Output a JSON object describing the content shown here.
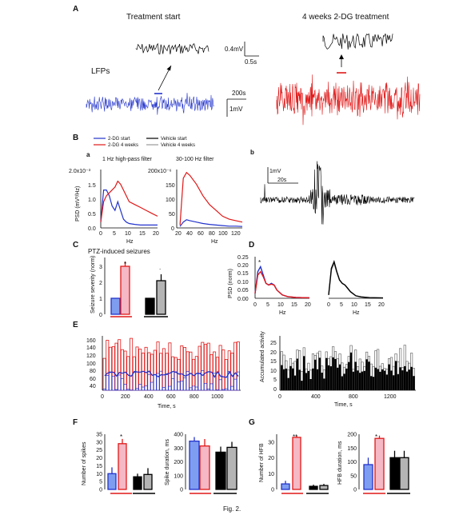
{
  "panels": {
    "A": "A",
    "B": "B",
    "C": "C",
    "D": "D",
    "E": "E",
    "F": "F",
    "G": "G",
    "Ba": "a",
    "Bb": "b"
  },
  "panelA": {
    "treatment_start": "Treatment start",
    "weeks_treatment": "4 weeks 2-DG treatment",
    "lfps": "LFPs",
    "scale_mv_small": "0.4mV",
    "scale_s_small": "0.5s",
    "scale_s_big": "200s",
    "scale_mv_big": "1mV"
  },
  "legend": {
    "dg_start": "2-DG start",
    "dg_4w": "2-DG 4 weeks",
    "veh_start": "Vehicle start",
    "veh_4w": "Vehicle 4 weeks"
  },
  "panelBa": {
    "title1": "1 Hz high-pass filter",
    "title2": "30-100 Hz filter",
    "ylab": "PSD (mV²/Hz)",
    "xlab": "Hz",
    "y1top": "2.0x10⁻³",
    "y1ticks": [
      "1.5",
      "1.0",
      "0.5",
      "0.0"
    ],
    "x1ticks": [
      "0",
      "5",
      "10",
      "15",
      "20"
    ],
    "y2top": "200x10⁻⁶",
    "y2ticks": [
      "150",
      "100",
      "50",
      "0"
    ],
    "x2ticks": [
      "20",
      "40",
      "60",
      "80",
      "100",
      "120"
    ]
  },
  "panelBb": {
    "scale_mv": "1mV",
    "scale_s": "20s"
  },
  "panelC": {
    "title": "PTZ-induced seizures",
    "ylab": "Seizure severity (norm)",
    "yticks": [
      "0",
      "1",
      "2",
      "3"
    ],
    "star": "*",
    "dot": "."
  },
  "panelD": {
    "ylab": "PSD (norm)",
    "yticks": [
      "0.00",
      "0.05",
      "0.10",
      "0.15",
      "0.20",
      "0.25"
    ],
    "xticks": [
      "0",
      "5",
      "10",
      "15",
      "20"
    ],
    "xlab": "Hz",
    "star": "*"
  },
  "panelE": {
    "xlab": "Time, s",
    "yticks_left": [
      "40",
      "60",
      "80",
      "100",
      "120",
      "140",
      "160"
    ],
    "xticks_left": [
      "0",
      "200",
      "400",
      "600",
      "800",
      "1000"
    ],
    "ylab_right": "Accumulated activity",
    "yticks_right": [
      "0",
      "5",
      "10",
      "15",
      "20",
      "25"
    ],
    "xticks_right": [
      "0",
      "400",
      "800",
      "1200"
    ]
  },
  "panelF": {
    "ylab1": "Number of spikes",
    "yticks1": [
      "0",
      "5",
      "10",
      "15",
      "20",
      "25",
      "30",
      "35"
    ],
    "ylab2": "Spike duration, ms",
    "yticks2": [
      "0",
      "100",
      "200",
      "300",
      "400"
    ],
    "star": "*"
  },
  "panelG": {
    "ylab1": "Number of HFB",
    "yticks1": [
      "0",
      "10",
      "20",
      "30"
    ],
    "ylab2": "HFB duration, ms",
    "yticks2": [
      "0",
      "50",
      "100",
      "150",
      "200"
    ],
    "star1": "**",
    "star2": "*"
  },
  "caption": "Fig. 2.",
  "colors": {
    "blue": "#2233cc",
    "red": "#e01818",
    "light_blue": "#7f9df0",
    "pink": "#f5b8c4",
    "gray": "#b4b4b4",
    "black": "#000000"
  },
  "chart_data": [
    {
      "type": "line",
      "panel": "Ba-left",
      "title": "1 Hz high-pass filter",
      "xlabel": "Hz",
      "ylabel": "PSD (mV²/Hz)",
      "xlim": [
        0,
        20
      ],
      "ylim": [
        0,
        0.002
      ],
      "x": [
        0,
        1,
        2,
        3,
        4,
        5,
        6,
        7,
        8,
        9,
        10,
        12,
        14,
        16,
        18,
        20
      ],
      "series": [
        {
          "name": "2-DG start",
          "values": [
            0.0002,
            0.0013,
            0.0013,
            0.0011,
            0.00075,
            0.0006,
            0.0009,
            0.0006,
            0.0003,
            0.0002,
            0.00015,
            0.00012,
            0.0001,
            0.0001,
            0.0001,
            0.0001
          ]
        },
        {
          "name": "2-DG 4 weeks",
          "values": [
            0.0002,
            0.0009,
            0.0011,
            0.0012,
            0.0013,
            0.0014,
            0.0016,
            0.0015,
            0.0013,
            0.0011,
            0.0009,
            0.0008,
            0.0007,
            0.0006,
            0.0005,
            0.0004
          ]
        }
      ]
    },
    {
      "type": "line",
      "panel": "Ba-right",
      "title": "30-100 Hz filter",
      "xlabel": "Hz",
      "xlim": [
        20,
        120
      ],
      "ylim": [
        0,
        0.0002
      ],
      "x": [
        25,
        30,
        35,
        40,
        50,
        60,
        70,
        80,
        90,
        100,
        110,
        120
      ],
      "series": [
        {
          "name": "2-DG start",
          "values": [
            5e-06,
            2e-05,
            2.8e-05,
            2.5e-05,
            2e-05,
            1.5e-05,
            1.2e-05,
            1e-05,
            8e-06,
            6e-06,
            6e-06,
            5e-06
          ]
        },
        {
          "name": "2-DG 4 weeks",
          "values": [
            1e-05,
            0.00017,
            0.00019,
            0.00018,
            0.00015,
            0.00011,
            8e-05,
            6e-05,
            4e-05,
            3e-05,
            2.5e-05,
            2e-05
          ]
        }
      ]
    },
    {
      "type": "bar",
      "panel": "C",
      "title": "PTZ-induced seizures",
      "ylabel": "Seizure severity (norm)",
      "ylim": [
        0,
        3.5
      ],
      "values": [
        1.0,
        3.0,
        1.0,
        2.1
      ],
      "errors": [
        0,
        0.3,
        0,
        0.4
      ]
    },
    {
      "type": "line",
      "panel": "D",
      "ylabel": "PSD (norm)",
      "xlabel": "Hz",
      "xlim": [
        0,
        20
      ],
      "ylim": [
        0,
        0.25
      ],
      "x": [
        0,
        1,
        2,
        3,
        4,
        5,
        6,
        7,
        8,
        10,
        12,
        15,
        20
      ],
      "series": [
        {
          "name": "2-DG start",
          "values": [
            0.03,
            0.16,
            0.19,
            0.14,
            0.09,
            0.08,
            0.09,
            0.08,
            0.05,
            0.02,
            0.01,
            0.005,
            0.003
          ]
        },
        {
          "name": "2-DG 4 weeks",
          "values": [
            0.03,
            0.14,
            0.16,
            0.13,
            0.09,
            0.08,
            0.085,
            0.08,
            0.05,
            0.02,
            0.01,
            0.005,
            0.003
          ]
        },
        {
          "name": "Vehicle start",
          "values": [
            0.02,
            0.18,
            0.22,
            0.16,
            0.11,
            0.09,
            0.08,
            0.06,
            0.04,
            0.015,
            0.008,
            0.004,
            0.002
          ]
        },
        {
          "name": "Vehicle 4 weeks",
          "values": [
            0.02,
            0.17,
            0.21,
            0.155,
            0.11,
            0.09,
            0.08,
            0.06,
            0.04,
            0.015,
            0.008,
            0.004,
            0.002
          ]
        }
      ]
    },
    {
      "type": "bar",
      "panel": "F-left",
      "ylabel": "Number of spikes",
      "ylim": [
        0,
        35
      ],
      "values": [
        10,
        29,
        8,
        9.5
      ],
      "errors": [
        4,
        3,
        2,
        4
      ]
    },
    {
      "type": "bar",
      "panel": "F-right",
      "ylabel": "Spike duration, ms",
      "ylim": [
        0,
        400
      ],
      "values": [
        350,
        315,
        270,
        305
      ],
      "errors": [
        30,
        50,
        40,
        40
      ]
    },
    {
      "type": "bar",
      "panel": "G-left",
      "ylabel": "Number of HFB",
      "ylim": [
        0,
        35
      ],
      "values": [
        3.5,
        33,
        2,
        2.5
      ],
      "errors": [
        2,
        1,
        1,
        1
      ]
    },
    {
      "type": "bar",
      "panel": "G-right",
      "ylabel": "HFB duration, ms",
      "ylim": [
        0,
        200
      ],
      "values": [
        90,
        185,
        115,
        115
      ],
      "errors": [
        25,
        10,
        25,
        25
      ]
    }
  ]
}
